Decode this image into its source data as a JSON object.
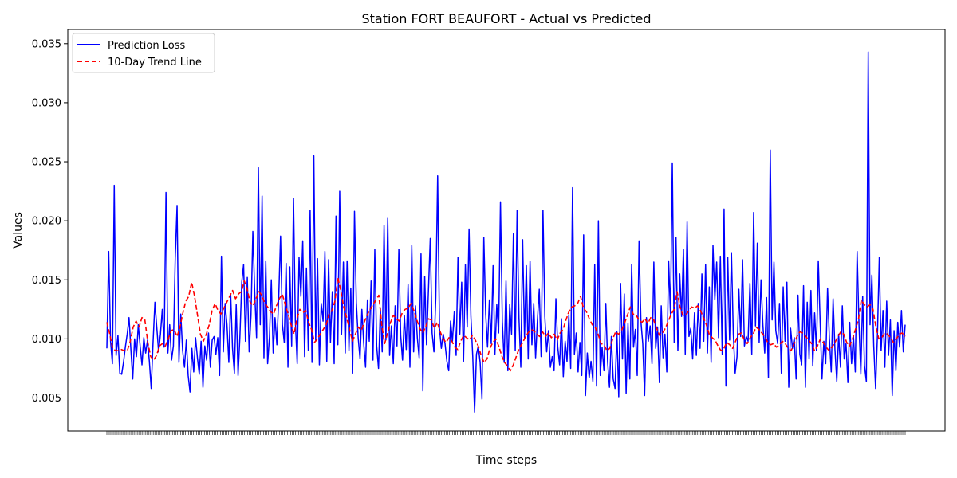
{
  "chart_data": {
    "type": "line",
    "title": "Station FORT BEAUFORT - Actual vs Predicted",
    "xlabel": "Time steps",
    "ylabel": "Values",
    "ylim": [
      0.0022,
      0.0362
    ],
    "yticks": [
      "0.005",
      "0.010",
      "0.015",
      "0.020",
      "0.025",
      "0.030",
      "0.035"
    ],
    "ytick_values": [
      0.005,
      0.01,
      0.015,
      0.02,
      0.025,
      0.03,
      0.035
    ],
    "legend_position": "upper-left",
    "grid": false,
    "series": [
      {
        "name": "Prediction Loss",
        "color": "#0000ff",
        "style": "solid",
        "values": [
          0.0092,
          0.0174,
          0.0098,
          0.0079,
          0.023,
          0.0086,
          0.0103,
          0.0071,
          0.007,
          0.008,
          0.0093,
          0.0104,
          0.0118,
          0.0091,
          0.0066,
          0.01,
          0.0085,
          0.0112,
          0.0094,
          0.0078,
          0.0101,
          0.0088,
          0.0099,
          0.0081,
          0.0058,
          0.0097,
          0.0131,
          0.011,
          0.0089,
          0.0104,
          0.0125,
          0.0093,
          0.0224,
          0.0088,
          0.0112,
          0.0082,
          0.0094,
          0.0168,
          0.0213,
          0.008,
          0.0121,
          0.009,
          0.0076,
          0.0099,
          0.0069,
          0.0055,
          0.0092,
          0.0072,
          0.0101,
          0.0084,
          0.007,
          0.0098,
          0.0059,
          0.0094,
          0.0082,
          0.0105,
          0.0076,
          0.0099,
          0.0102,
          0.0087,
          0.0101,
          0.0069,
          0.017,
          0.0089,
          0.013,
          0.0112,
          0.008,
          0.0138,
          0.0092,
          0.0071,
          0.0129,
          0.0069,
          0.0102,
          0.0148,
          0.0163,
          0.0098,
          0.0152,
          0.0089,
          0.012,
          0.0191,
          0.014,
          0.0101,
          0.0245,
          0.0112,
          0.0221,
          0.0084,
          0.0166,
          0.0079,
          0.0102,
          0.015,
          0.0088,
          0.0118,
          0.0095,
          0.0135,
          0.0187,
          0.0112,
          0.0097,
          0.0164,
          0.0076,
          0.0161,
          0.0094,
          0.0219,
          0.0115,
          0.0079,
          0.0169,
          0.0136,
          0.0183,
          0.0085,
          0.016,
          0.009,
          0.0209,
          0.008,
          0.0255,
          0.0098,
          0.0168,
          0.0078,
          0.013,
          0.0115,
          0.0174,
          0.0081,
          0.0167,
          0.0097,
          0.014,
          0.0079,
          0.0204,
          0.0095,
          0.0225,
          0.0104,
          0.0165,
          0.0088,
          0.0166,
          0.009,
          0.0143,
          0.0071,
          0.0208,
          0.0131,
          0.0101,
          0.0083,
          0.0125,
          0.0096,
          0.0076,
          0.0133,
          0.0098,
          0.0149,
          0.0082,
          0.0176,
          0.0094,
          0.0075,
          0.0126,
          0.0089,
          0.0196,
          0.0099,
          0.0202,
          0.0086,
          0.0111,
          0.0079,
          0.0128,
          0.0094,
          0.0176,
          0.0103,
          0.0082,
          0.012,
          0.0091,
          0.0146,
          0.0076,
          0.0179,
          0.0089,
          0.0128,
          0.0101,
          0.0084,
          0.0172,
          0.0056,
          0.0153,
          0.0095,
          0.014,
          0.0185,
          0.0105,
          0.0089,
          0.0135,
          0.0238,
          0.0109,
          0.0092,
          0.0104,
          0.0096,
          0.0081,
          0.0073,
          0.0115,
          0.0098,
          0.0123,
          0.0086,
          0.0169,
          0.0104,
          0.0148,
          0.0081,
          0.0163,
          0.011,
          0.0193,
          0.0119,
          0.0085,
          0.0038,
          0.0087,
          0.0094,
          0.008,
          0.0049,
          0.0186,
          0.0121,
          0.0093,
          0.0133,
          0.0096,
          0.0162,
          0.0087,
          0.0129,
          0.0105,
          0.0216,
          0.0115,
          0.008,
          0.0149,
          0.0073,
          0.0129,
          0.0104,
          0.0189,
          0.009,
          0.0209,
          0.0118,
          0.0076,
          0.0184,
          0.0101,
          0.0162,
          0.0083,
          0.0166,
          0.0095,
          0.013,
          0.0084,
          0.0116,
          0.0142,
          0.0085,
          0.0209,
          0.0119,
          0.0089,
          0.0107,
          0.0076,
          0.0085,
          0.0073,
          0.0134,
          0.0093,
          0.0078,
          0.0117,
          0.0068,
          0.0098,
          0.0081,
          0.012,
          0.0075,
          0.0228,
          0.0087,
          0.0105,
          0.0072,
          0.0097,
          0.0069,
          0.0188,
          0.0052,
          0.0088,
          0.0067,
          0.0081,
          0.0064,
          0.0163,
          0.006,
          0.02,
          0.0069,
          0.0093,
          0.0073,
          0.013,
          0.008,
          0.0059,
          0.0102,
          0.0066,
          0.0058,
          0.0106,
          0.0051,
          0.0147,
          0.0083,
          0.0138,
          0.0054,
          0.0113,
          0.0066,
          0.0163,
          0.0093,
          0.0108,
          0.0069,
          0.0183,
          0.0115,
          0.0096,
          0.0052,
          0.0118,
          0.0098,
          0.0111,
          0.0079,
          0.0165,
          0.0092,
          0.011,
          0.0063,
          0.0128,
          0.0084,
          0.0104,
          0.0072,
          0.0166,
          0.0121,
          0.0249,
          0.0097,
          0.0186,
          0.009,
          0.0155,
          0.0119,
          0.0176,
          0.0087,
          0.0199,
          0.0102,
          0.0109,
          0.0083,
          0.0122,
          0.0086,
          0.013,
          0.0092,
          0.0155,
          0.0098,
          0.0163,
          0.0088,
          0.0144,
          0.008,
          0.0179,
          0.0133,
          0.0165,
          0.0101,
          0.017,
          0.0087,
          0.021,
          0.006,
          0.0169,
          0.0099,
          0.0173,
          0.0104,
          0.0071,
          0.0085,
          0.0142,
          0.0102,
          0.0167,
          0.0094,
          0.0102,
          0.0098,
          0.0147,
          0.0087,
          0.0207,
          0.0111,
          0.0181,
          0.0097,
          0.015,
          0.0112,
          0.0088,
          0.0135,
          0.0067,
          0.026,
          0.0116,
          0.0165,
          0.0107,
          0.0096,
          0.013,
          0.0071,
          0.0144,
          0.0098,
          0.0148,
          0.0059,
          0.0109,
          0.0092,
          0.0101,
          0.0066,
          0.0137,
          0.0087,
          0.0078,
          0.0145,
          0.0059,
          0.0131,
          0.0083,
          0.0141,
          0.0077,
          0.0122,
          0.009,
          0.0166,
          0.0114,
          0.0066,
          0.0098,
          0.0079,
          0.0143,
          0.01,
          0.0072,
          0.0134,
          0.0091,
          0.0064,
          0.0104,
          0.0076,
          0.0128,
          0.0083,
          0.0096,
          0.0063,
          0.0114,
          0.0079,
          0.0103,
          0.0072,
          0.0174,
          0.0113,
          0.007,
          0.0136,
          0.0077,
          0.0064,
          0.0343,
          0.0112,
          0.0154,
          0.0094,
          0.0058,
          0.0103,
          0.0169,
          0.009,
          0.0124,
          0.0076,
          0.0132,
          0.0086,
          0.0116,
          0.0052,
          0.0107,
          0.0073,
          0.0114,
          0.0093,
          0.0124,
          0.0089,
          0.0112
        ]
      },
      {
        "name": "10-Day Trend Line",
        "color": "#ff0000",
        "style": "dashed",
        "values": [
          0.0114,
          0.0104,
          0.0092,
          0.009,
          0.009,
          0.0091,
          0.009,
          0.009,
          0.0098,
          0.011,
          0.0115,
          0.011,
          0.0118,
          0.0116,
          0.0097,
          0.0085,
          0.0082,
          0.0086,
          0.0094,
          0.0096,
          0.0094,
          0.01,
          0.0107,
          0.0108,
          0.0102,
          0.011,
          0.0122,
          0.0132,
          0.0136,
          0.0148,
          0.0136,
          0.012,
          0.0104,
          0.0098,
          0.0104,
          0.0112,
          0.0124,
          0.013,
          0.0124,
          0.0121,
          0.0126,
          0.0131,
          0.0136,
          0.0141,
          0.0134,
          0.0138,
          0.014,
          0.0149,
          0.0142,
          0.0131,
          0.0128,
          0.0134,
          0.014,
          0.0137,
          0.013,
          0.0127,
          0.0123,
          0.0121,
          0.0128,
          0.0134,
          0.0138,
          0.0129,
          0.0121,
          0.0112,
          0.0104,
          0.0117,
          0.0125,
          0.0122,
          0.0124,
          0.0114,
          0.0108,
          0.0097,
          0.01,
          0.0104,
          0.0108,
          0.0112,
          0.0121,
          0.0124,
          0.0132,
          0.0152,
          0.0141,
          0.0127,
          0.0118,
          0.0108,
          0.0098,
          0.0104,
          0.011,
          0.0107,
          0.0114,
          0.012,
          0.0125,
          0.0129,
          0.0133,
          0.0137,
          0.0112,
          0.0096,
          0.0105,
          0.0114,
          0.012,
          0.0117,
          0.0115,
          0.0122,
          0.0125,
          0.0126,
          0.013,
          0.0124,
          0.0116,
          0.0109,
          0.0105,
          0.011,
          0.0117,
          0.0116,
          0.0109,
          0.0114,
          0.0106,
          0.01,
          0.0097,
          0.0101,
          0.0098,
          0.0093,
          0.0091,
          0.0098,
          0.0103,
          0.0101,
          0.0099,
          0.0103,
          0.0099,
          0.0094,
          0.0086,
          0.008,
          0.0083,
          0.0092,
          0.0097,
          0.01,
          0.0094,
          0.0086,
          0.008,
          0.0077,
          0.0073,
          0.0078,
          0.0085,
          0.0092,
          0.0096,
          0.0101,
          0.0105,
          0.0108,
          0.0107,
          0.0104,
          0.0102,
          0.0106,
          0.0102,
          0.0105,
          0.0101,
          0.0104,
          0.0099,
          0.0105,
          0.0108,
          0.0116,
          0.0123,
          0.0127,
          0.0128,
          0.013,
          0.0136,
          0.0126,
          0.0123,
          0.0117,
          0.0112,
          0.011,
          0.0104,
          0.0096,
          0.0095,
          0.009,
          0.0092,
          0.01,
          0.0106,
          0.0104,
          0.0107,
          0.0113,
          0.012,
          0.0127,
          0.0121,
          0.012,
          0.0116,
          0.0114,
          0.0117,
          0.0113,
          0.0118,
          0.0116,
          0.0109,
          0.0103,
          0.0105,
          0.0109,
          0.0115,
          0.0121,
          0.0125,
          0.014,
          0.0127,
          0.012,
          0.012,
          0.0124,
          0.0127,
          0.0126,
          0.0128,
          0.0124,
          0.0118,
          0.0112,
          0.0104,
          0.0101,
          0.0099,
          0.0094,
          0.009,
          0.0092,
          0.0097,
          0.0095,
          0.0092,
          0.0098,
          0.0104,
          0.0105,
          0.0099,
          0.0096,
          0.0101,
          0.0104,
          0.011,
          0.0108,
          0.0105,
          0.0102,
          0.0097,
          0.0095,
          0.0096,
          0.0093,
          0.0095,
          0.0098,
          0.0096,
          0.0092,
          0.009,
          0.0096,
          0.0102,
          0.0106,
          0.0105,
          0.0102,
          0.0099,
          0.0096,
          0.009,
          0.0094,
          0.01,
          0.0097,
          0.0093,
          0.009,
          0.0093,
          0.0097,
          0.0102,
          0.0106,
          0.0104,
          0.0097,
          0.0094,
          0.01,
          0.0108,
          0.0116,
          0.0133,
          0.0129,
          0.0127,
          0.0129,
          0.0125,
          0.011,
          0.01,
          0.0101,
          0.0105,
          0.0104,
          0.0101,
          0.0097,
          0.01,
          0.0104,
          0.0105,
          0.0102
        ]
      }
    ]
  }
}
